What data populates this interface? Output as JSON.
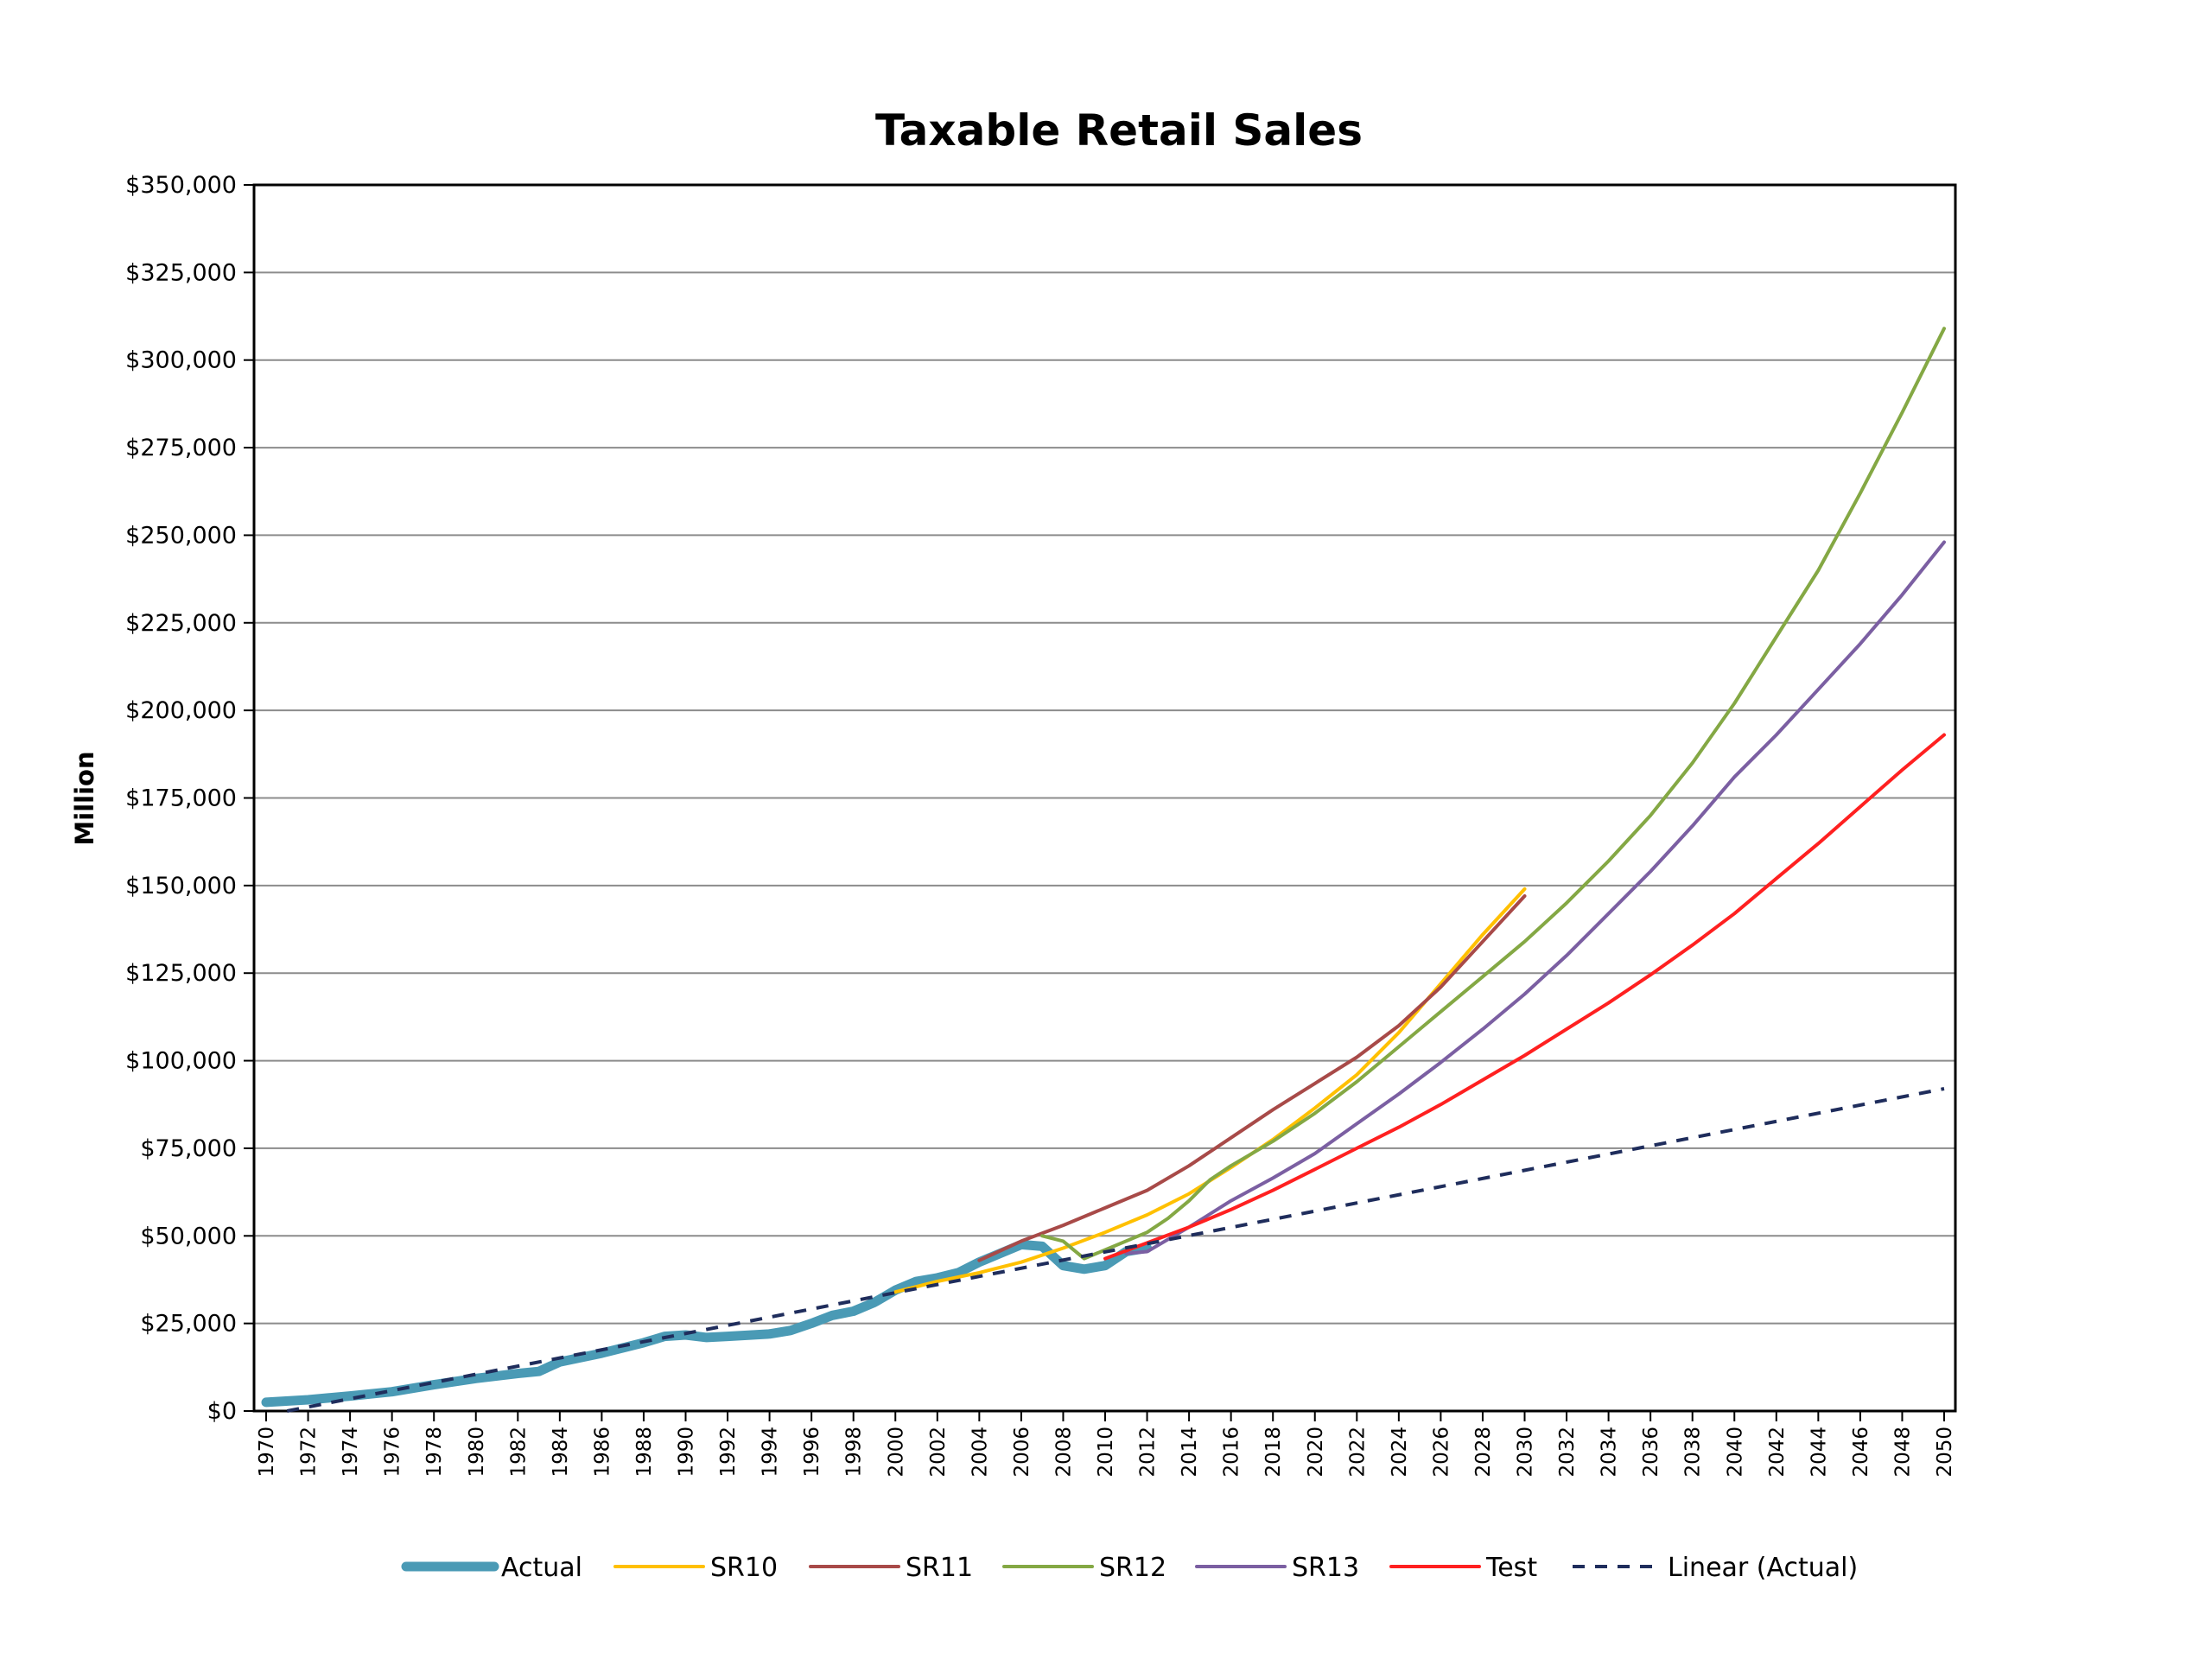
{
  "chart_data": {
    "type": "line",
    "title": "Taxable Retail Sales",
    "xlabel": "",
    "ylabel": "Million",
    "xlim": [
      1970,
      2050
    ],
    "ylim": [
      0,
      350000
    ],
    "x_ticks": [
      "1970",
      "1972",
      "1974",
      "1976",
      "1978",
      "1980",
      "1982",
      "1984",
      "1986",
      "1988",
      "1990",
      "1992",
      "1994",
      "1996",
      "1998",
      "2000",
      "2002",
      "2004",
      "2006",
      "2008",
      "2010",
      "2012",
      "2014",
      "2016",
      "2018",
      "2020",
      "2022",
      "2024",
      "2026",
      "2028",
      "2030",
      "2032",
      "2034",
      "2036",
      "2038",
      "2040",
      "2042",
      "2044",
      "2046",
      "2048",
      "2050"
    ],
    "y_ticks": [
      "$0",
      "$25,000",
      "$50,000",
      "$75,000",
      "$100,000",
      "$125,000",
      "$150,000",
      "$175,000",
      "$200,000",
      "$225,000",
      "$250,000",
      "$275,000",
      "$300,000",
      "$325,000",
      "$350,000"
    ],
    "grid": "horizontal",
    "legend_position": "bottom",
    "series": [
      {
        "name": "Actual",
        "color": "#4a9ab5",
        "style": "thick",
        "points": [
          [
            1970,
            2500
          ],
          [
            1972,
            3200
          ],
          [
            1974,
            4300
          ],
          [
            1976,
            5500
          ],
          [
            1978,
            7500
          ],
          [
            1980,
            9300
          ],
          [
            1982,
            10700
          ],
          [
            1983,
            11300
          ],
          [
            1984,
            14000
          ],
          [
            1986,
            16500
          ],
          [
            1988,
            19500
          ],
          [
            1989,
            21300
          ],
          [
            1990,
            21700
          ],
          [
            1991,
            21000
          ],
          [
            1992,
            21300
          ],
          [
            1994,
            22000
          ],
          [
            1995,
            23000
          ],
          [
            1996,
            25000
          ],
          [
            1997,
            27300
          ],
          [
            1998,
            28500
          ],
          [
            1999,
            31000
          ],
          [
            2000,
            34500
          ],
          [
            2001,
            37000
          ],
          [
            2002,
            38000
          ],
          [
            2003,
            39500
          ],
          [
            2004,
            42500
          ],
          [
            2005,
            45000
          ],
          [
            2006,
            47500
          ],
          [
            2007,
            47000
          ],
          [
            2008,
            41500
          ],
          [
            2009,
            40500
          ],
          [
            2010,
            41500
          ],
          [
            2011,
            45500
          ],
          [
            2012,
            46500
          ]
        ]
      },
      {
        "name": "SR10",
        "color": "#ffc000",
        "style": "solid",
        "points": [
          [
            2000,
            34000
          ],
          [
            2002,
            37000
          ],
          [
            2004,
            39500
          ],
          [
            2006,
            42500
          ],
          [
            2008,
            46500
          ],
          [
            2010,
            51000
          ],
          [
            2012,
            56000
          ],
          [
            2014,
            62000
          ],
          [
            2016,
            69500
          ],
          [
            2018,
            77500
          ],
          [
            2020,
            86500
          ],
          [
            2022,
            96000
          ],
          [
            2024,
            108000
          ],
          [
            2026,
            122000
          ],
          [
            2028,
            136000
          ],
          [
            2030,
            149000
          ]
        ]
      },
      {
        "name": "SR11",
        "color": "#a84a48",
        "style": "solid",
        "points": [
          [
            2004,
            43000
          ],
          [
            2006,
            48500
          ],
          [
            2008,
            53000
          ],
          [
            2010,
            58000
          ],
          [
            2012,
            63000
          ],
          [
            2014,
            70000
          ],
          [
            2016,
            78000
          ],
          [
            2018,
            86000
          ],
          [
            2020,
            93500
          ],
          [
            2022,
            101000
          ],
          [
            2024,
            110000
          ],
          [
            2026,
            121000
          ],
          [
            2028,
            134000
          ],
          [
            2030,
            147000
          ]
        ]
      },
      {
        "name": "SR12",
        "color": "#84a844",
        "style": "solid",
        "points": [
          [
            2007,
            50000
          ],
          [
            2008,
            48500
          ],
          [
            2009,
            43500
          ],
          [
            2010,
            46000
          ],
          [
            2012,
            51000
          ],
          [
            2013,
            55000
          ],
          [
            2014,
            60000
          ],
          [
            2015,
            66000
          ],
          [
            2016,
            70000
          ],
          [
            2018,
            77000
          ],
          [
            2020,
            85000
          ],
          [
            2022,
            94000
          ],
          [
            2024,
            104000
          ],
          [
            2026,
            114000
          ],
          [
            2028,
            124000
          ],
          [
            2030,
            134000
          ],
          [
            2032,
            145000
          ],
          [
            2034,
            157000
          ],
          [
            2036,
            170000
          ],
          [
            2038,
            185000
          ],
          [
            2040,
            202000
          ],
          [
            2042,
            221000
          ],
          [
            2044,
            240000
          ],
          [
            2046,
            262000
          ],
          [
            2048,
            285000
          ],
          [
            2050,
            309000
          ]
        ]
      },
      {
        "name": "SR13",
        "color": "#7b5fa2",
        "style": "solid",
        "points": [
          [
            2011,
            45000
          ],
          [
            2012,
            45500
          ],
          [
            2014,
            52500
          ],
          [
            2016,
            60000
          ],
          [
            2018,
            66500
          ],
          [
            2020,
            73500
          ],
          [
            2022,
            82000
          ],
          [
            2024,
            90500
          ],
          [
            2026,
            99500
          ],
          [
            2028,
            109000
          ],
          [
            2030,
            119000
          ],
          [
            2032,
            130000
          ],
          [
            2034,
            142000
          ],
          [
            2036,
            154000
          ],
          [
            2038,
            167000
          ],
          [
            2040,
            181000
          ],
          [
            2042,
            193000
          ],
          [
            2044,
            206000
          ],
          [
            2046,
            219000
          ],
          [
            2048,
            233000
          ],
          [
            2050,
            248000
          ]
        ]
      },
      {
        "name": "Test",
        "color": "#ff2020",
        "style": "solid",
        "points": [
          [
            2010,
            43500
          ],
          [
            2012,
            48000
          ],
          [
            2014,
            52500
          ],
          [
            2016,
            57500
          ],
          [
            2018,
            63000
          ],
          [
            2020,
            69000
          ],
          [
            2022,
            75000
          ],
          [
            2024,
            81000
          ],
          [
            2026,
            87500
          ],
          [
            2028,
            94500
          ],
          [
            2030,
            101500
          ],
          [
            2032,
            109000
          ],
          [
            2034,
            116500
          ],
          [
            2036,
            124500
          ],
          [
            2038,
            133000
          ],
          [
            2040,
            142000
          ],
          [
            2042,
            152000
          ],
          [
            2044,
            162000
          ],
          [
            2046,
            172500
          ],
          [
            2048,
            183000
          ],
          [
            2050,
            193000
          ]
        ]
      },
      {
        "name": "Linear (Actual)",
        "color": "#1f2d5c",
        "style": "dashed",
        "points": [
          [
            1971,
            0
          ],
          [
            2050,
            92000
          ]
        ]
      }
    ]
  }
}
